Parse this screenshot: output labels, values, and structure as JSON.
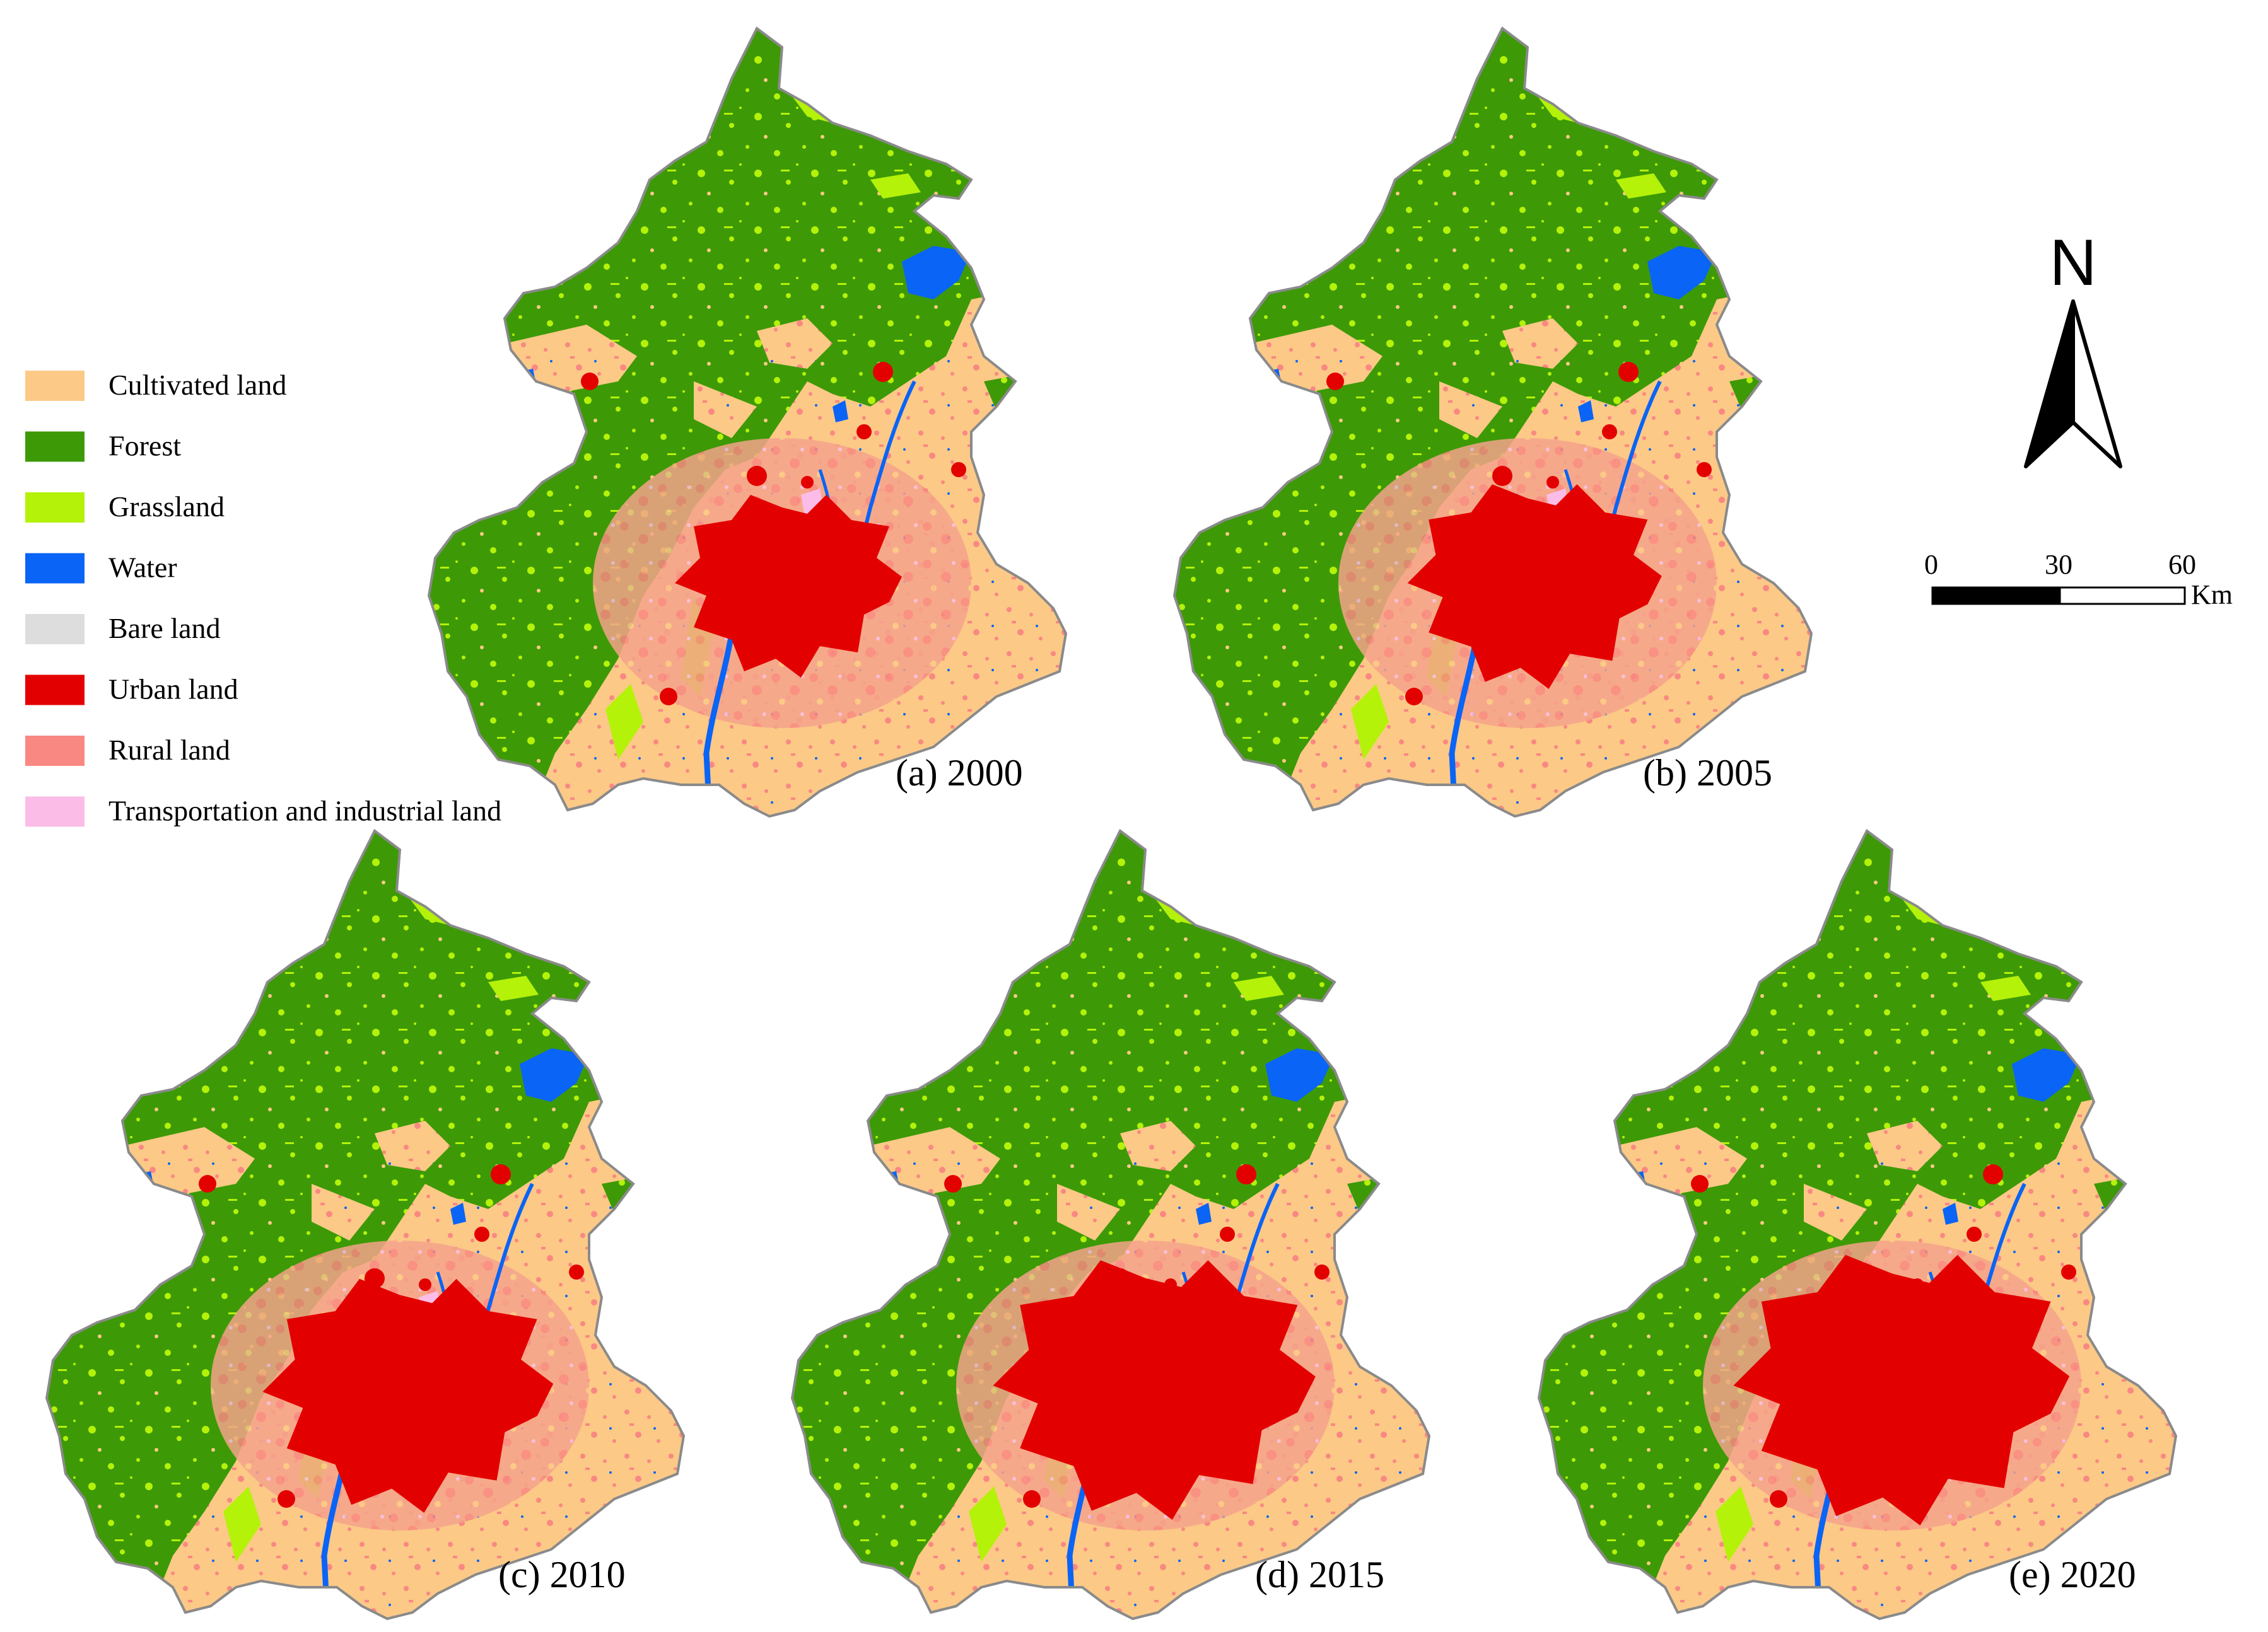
{
  "legend": {
    "items": [
      {
        "key": "cultivated",
        "label": "Cultivated land",
        "color": "#fcc987"
      },
      {
        "key": "forest",
        "label": "Forest",
        "color": "#3d9a06"
      },
      {
        "key": "grassland",
        "label": "Grassland",
        "color": "#b4f20a"
      },
      {
        "key": "water",
        "label": "Water",
        "color": "#0a64f5"
      },
      {
        "key": "bare",
        "label": "Bare land",
        "color": "#dddddd"
      },
      {
        "key": "urban",
        "label": "Urban land",
        "color": "#e30000"
      },
      {
        "key": "rural",
        "label": "Rural land",
        "color": "#f98882"
      },
      {
        "key": "transport",
        "label": "Transportation and industrial land",
        "color": "#fbbde8"
      }
    ]
  },
  "panels": [
    {
      "label": "(a) 2000",
      "urban_scale": 1.0
    },
    {
      "label": "(b) 2005",
      "urban_scale": 1.12
    },
    {
      "label": "(c) 2010",
      "urban_scale": 1.28
    },
    {
      "label": "(d) 2015",
      "urban_scale": 1.42
    },
    {
      "label": "(e) 2020",
      "urban_scale": 1.48
    }
  ],
  "north_arrow": {
    "letter": "N"
  },
  "scale_bar": {
    "ticks": [
      "0",
      "30",
      "60"
    ],
    "unit": "Km"
  },
  "colors": {
    "outline": "#8a8a8a",
    "background": "#ffffff"
  }
}
